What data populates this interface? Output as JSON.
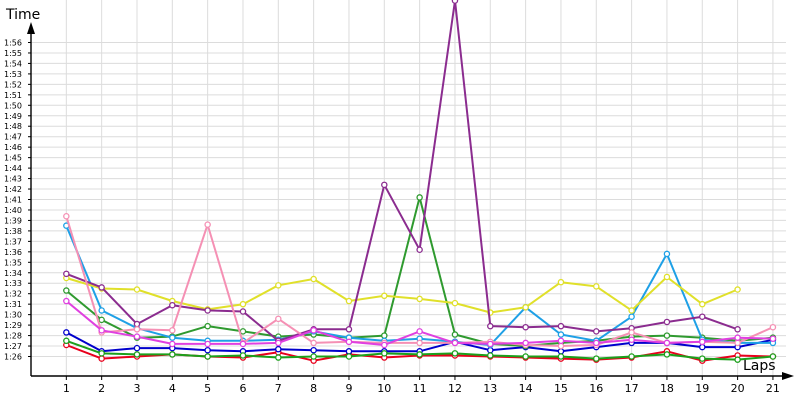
{
  "chart_data": {
    "type": "line",
    "ylabel": "Time",
    "xlabel": "Laps",
    "x": [
      1,
      2,
      3,
      4,
      5,
      6,
      7,
      8,
      9,
      10,
      11,
      12,
      13,
      14,
      15,
      16,
      17,
      18,
      19,
      20,
      21
    ],
    "xlim": [
      0,
      21
    ],
    "ylim": [
      84.5,
      118
    ],
    "y_ticks": [
      86,
      87,
      88,
      89,
      90,
      91,
      92,
      93,
      94,
      95,
      96,
      97,
      98,
      99,
      100,
      101,
      102,
      103,
      104,
      105,
      106,
      107,
      108,
      109,
      110,
      111,
      112,
      113,
      114,
      115,
      116
    ],
    "y_tick_labels": [
      "1:26",
      "1:27",
      "1:28",
      "1:29",
      "1:30",
      "1:31",
      "1:32",
      "1:33",
      "1:34",
      "1:35",
      "1:36",
      "1:37",
      "1:38",
      "1:39",
      "1:40",
      "1:41",
      "1:42",
      "1:43",
      "1:44",
      "1:45",
      "1:46",
      "1:47",
      "1:48",
      "1:49",
      "1:50",
      "1:51",
      "1:52",
      "1:53",
      "1:54",
      "1:55",
      "1:56"
    ],
    "grid": true,
    "legend": "none",
    "series": [
      {
        "color": "#e8001c",
        "values": [
          87.1,
          85.8,
          86.0,
          86.2,
          86.0,
          85.9,
          86.4,
          85.6,
          86.2,
          85.9,
          86.1,
          86.1,
          86.0,
          85.9,
          85.8,
          85.7,
          85.9,
          86.5,
          85.6,
          86.1,
          86.0
        ]
      },
      {
        "color": "#0000cc",
        "values": [
          88.3,
          86.5,
          86.8,
          86.8,
          86.6,
          86.5,
          86.7,
          86.6,
          86.5,
          86.5,
          86.5,
          87.4,
          86.6,
          86.9,
          86.5,
          86.9,
          87.3,
          87.3,
          86.9,
          86.9,
          87.6
        ]
      },
      {
        "color": "#1ba01b",
        "values": [
          87.5,
          86.3,
          86.2,
          86.2,
          86.0,
          86.1,
          85.9,
          86.0,
          86.0,
          86.3,
          86.2,
          86.3,
          86.1,
          86.0,
          86.0,
          85.8,
          86.0,
          86.2,
          85.8,
          85.7,
          86.0
        ]
      },
      {
        "color": "#2f9a2f",
        "values": [
          92.3,
          89.5,
          87.8,
          87.9,
          88.9,
          88.4,
          87.9,
          88.1,
          87.8,
          88.0,
          101.2,
          88.1,
          87.2,
          87.0,
          87.3,
          87.5,
          87.9,
          88.0,
          87.8,
          87.5,
          87.8
        ]
      },
      {
        "color": "#1ea0e6",
        "values": [
          98.5,
          90.4,
          88.7,
          87.8,
          87.5,
          87.5,
          87.6,
          88.4,
          87.8,
          87.5,
          87.7,
          87.4,
          87.1,
          90.7,
          88.1,
          87.5,
          89.8,
          95.8,
          87.6,
          87.3,
          87.3
        ]
      },
      {
        "color": "#e0e02a",
        "values": [
          93.5,
          92.5,
          92.4,
          91.3,
          90.5,
          91.0,
          92.8,
          93.4,
          91.3,
          91.8,
          91.5,
          91.1,
          90.2,
          90.7,
          93.1,
          92.7,
          90.4,
          93.6,
          91.0,
          92.4,
          null
        ]
      },
      {
        "color": "#8b2c8f",
        "values": [
          93.9,
          92.6,
          89.1,
          90.9,
          90.4,
          90.3,
          87.5,
          88.6,
          88.6,
          102.4,
          96.2,
          120.0,
          88.9,
          88.8,
          88.9,
          88.4,
          88.7,
          89.3,
          89.8,
          88.6,
          null
        ]
      },
      {
        "color": "#f590b4",
        "values": [
          99.4,
          88.3,
          88.6,
          88.5,
          98.6,
          87.3,
          89.6,
          87.3,
          87.4,
          87.3,
          87.3,
          87.3,
          87.4,
          87.1,
          87.0,
          87.1,
          88.3,
          87.3,
          87.4,
          87.3,
          88.8
        ]
      },
      {
        "color": "#e040e0",
        "values": [
          91.3,
          88.5,
          87.9,
          87.2,
          87.2,
          87.2,
          87.3,
          88.5,
          87.4,
          87.1,
          88.4,
          87.3,
          87.2,
          87.3,
          87.5,
          87.3,
          87.6,
          87.3,
          87.4,
          87.8,
          87.7
        ]
      }
    ]
  }
}
